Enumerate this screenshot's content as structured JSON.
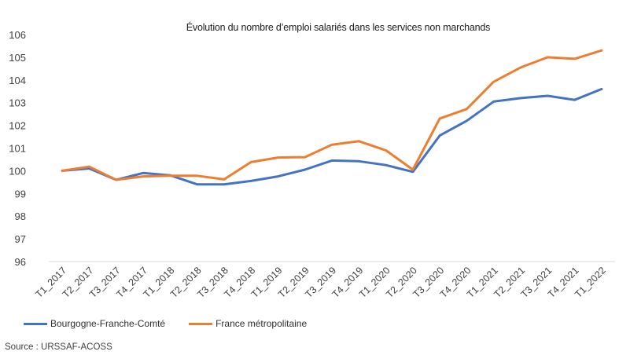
{
  "chart_data": {
    "type": "line",
    "title": "Évolution du nombre d’emploi salariés dans les services non marchands",
    "categories": [
      "T1_2017",
      "T2_2017",
      "T3_2017",
      "T4_2017",
      "T1_2018",
      "T2_2018",
      "T3_2018",
      "T4_2018",
      "T1_2019",
      "T2_2019",
      "T3_2019",
      "T4_2019",
      "T1_2020",
      "T2_2020",
      "T3_2020",
      "T4_2020",
      "T1_2021",
      "T2_2021",
      "T3_2021",
      "T4_2021",
      "T1_2022"
    ],
    "series": [
      {
        "name": "Bourgogne-Franche-Comté",
        "color": "#4472C4",
        "values": [
          100.0,
          100.1,
          99.6,
          99.9,
          99.8,
          99.4,
          99.4,
          99.55,
          99.75,
          100.05,
          100.45,
          100.42,
          100.25,
          99.95,
          101.55,
          102.2,
          103.05,
          103.2,
          103.3,
          103.12,
          103.6
        ]
      },
      {
        "name": "France métropolitaine",
        "color": "#ED7D31",
        "values": [
          100.0,
          100.18,
          99.6,
          99.75,
          99.78,
          99.78,
          99.62,
          100.38,
          100.58,
          100.6,
          101.15,
          101.3,
          100.9,
          100.05,
          102.3,
          102.72,
          103.92,
          104.55,
          105.0,
          104.93,
          105.3
        ]
      }
    ],
    "ylim": [
      96,
      106
    ],
    "yticks": [
      96,
      97,
      98,
      99,
      100,
      101,
      102,
      103,
      104,
      105,
      106
    ],
    "grid": false,
    "legend_position": "bottom-left"
  },
  "source": "Source : URSSAF-ACOSS"
}
